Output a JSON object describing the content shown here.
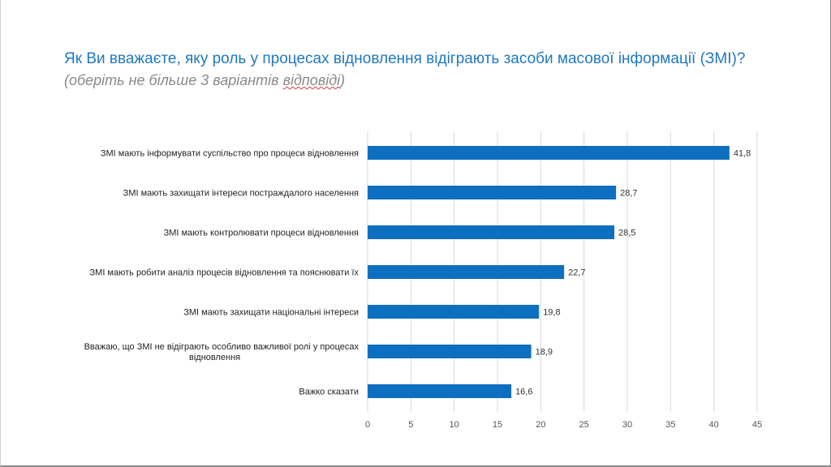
{
  "title": "Як Ви вважаєте, яку роль у процесах відновлення відіграють засоби масової інформації (ЗМІ)?",
  "subtitle_prefix": "(оберіть не більше 3 варіантів ",
  "subtitle_squiggle": "відповіді",
  "subtitle_suffix": ")",
  "colors": {
    "bar": "#0d6fc0",
    "grid": "#d9d9d9",
    "title": "#1f78c1"
  },
  "chart_data": {
    "type": "bar",
    "orientation": "horizontal",
    "categories": [
      "ЗМІ мають інформувати суспільство про процеси відновлення",
      "ЗМІ мають захищати інтереси постраждалого населення",
      "ЗМІ мають контролювати процеси відновлення",
      "ЗМІ мають робити аналіз процесів відновлення та пояснювати їх",
      "ЗМІ мають захищати національні інтереси",
      "Вважаю, що  ЗМІ не відіграють особливо важливої ролі у процесах відновлення",
      "Важко сказати"
    ],
    "category_lines": [
      [
        "ЗМІ мають інформувати суспільство про процеси відновлення"
      ],
      [
        "ЗМІ мають захищати інтереси постраждалого населення"
      ],
      [
        "ЗМІ мають контролювати процеси відновлення"
      ],
      [
        "ЗМІ мають робити аналіз процесів відновлення та пояснювати їх"
      ],
      [
        "ЗМІ мають захищати національні інтереси"
      ],
      [
        "Вважаю, що  ЗМІ не відіграють особливо важливої ролі у процесах",
        "відновлення"
      ],
      [
        "Важко сказати"
      ]
    ],
    "values": [
      41.8,
      28.7,
      28.5,
      22.7,
      19.8,
      18.9,
      16.6
    ],
    "value_labels": [
      "41,8",
      "28,7",
      "28,5",
      "22,7",
      "19,8",
      "18,9",
      "16,6"
    ],
    "xlim": [
      0,
      45
    ],
    "xticks": [
      0,
      5,
      10,
      15,
      20,
      25,
      30,
      35,
      40,
      45
    ],
    "grid": true,
    "legend": "none"
  }
}
